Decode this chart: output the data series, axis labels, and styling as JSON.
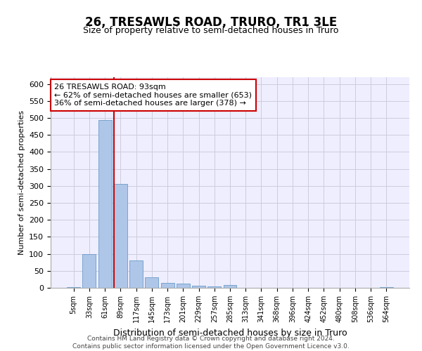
{
  "title": "26, TRESAWLS ROAD, TRURO, TR1 3LE",
  "subtitle": "Size of property relative to semi-detached houses in Truro",
  "xlabel": "Distribution of semi-detached houses by size in Truro",
  "ylabel": "Number of semi-detached properties",
  "bar_color": "#aec6e8",
  "bar_edge_color": "#5a8fc0",
  "categories": [
    "5sqm",
    "33sqm",
    "61sqm",
    "89sqm",
    "117sqm",
    "145sqm",
    "173sqm",
    "201sqm",
    "229sqm",
    "257sqm",
    "285sqm",
    "313sqm",
    "341sqm",
    "368sqm",
    "396sqm",
    "424sqm",
    "452sqm",
    "480sqm",
    "508sqm",
    "536sqm",
    "564sqm"
  ],
  "values": [
    3,
    100,
    493,
    305,
    80,
    30,
    15,
    13,
    6,
    4,
    8,
    1,
    1,
    1,
    1,
    1,
    0,
    0,
    0,
    0,
    3
  ],
  "vline_x_index": 3,
  "vline_color": "#cc0000",
  "annotation_text": "26 TRESAWLS ROAD: 93sqm\n← 62% of semi-detached houses are smaller (653)\n36% of semi-detached houses are larger (378) →",
  "annotation_box_color": "#ffffff",
  "annotation_box_edge": "#cc0000",
  "ylim": [
    0,
    620
  ],
  "yticks": [
    0,
    50,
    100,
    150,
    200,
    250,
    300,
    350,
    400,
    450,
    500,
    550,
    600
  ],
  "footer_line1": "Contains HM Land Registry data © Crown copyright and database right 2024.",
  "footer_line2": "Contains public sector information licensed under the Open Government Licence v3.0.",
  "bg_color": "#eeeeff",
  "grid_color": "#ccccdd"
}
